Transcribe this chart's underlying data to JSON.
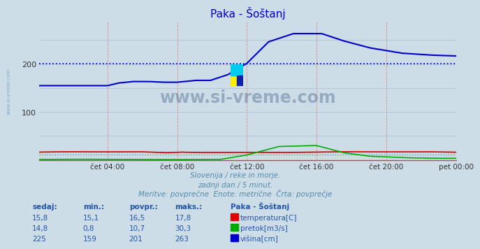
{
  "title": "Paka - Šoštanj",
  "title_color": "#0000cc",
  "fig_bg_color": "#ccdde8",
  "plot_bg_color": "#ccdde8",
  "ylim": [
    0,
    290
  ],
  "xlim": [
    0,
    287
  ],
  "yticks": [
    100,
    200
  ],
  "xtick_labels": [
    "čet 04:00",
    "čet 08:00",
    "čet 12:00",
    "čet 16:00",
    "čet 20:00",
    "pet 00:00"
  ],
  "xtick_positions": [
    47,
    95,
    143,
    191,
    239,
    287
  ],
  "temp_color": "#dd0000",
  "pretok_color": "#00aa00",
  "visina_color": "#0000cc",
  "visina_avg": 201,
  "temp_avg": 16.5,
  "pretok_avg": 10.7,
  "subtitle1": "Slovenija / reke in morje.",
  "subtitle2": "zadnji dan / 5 minut.",
  "subtitle3": "Meritve: povprečne  Enote: metrične  Črta: povprečje",
  "subtitle_color": "#5588aa",
  "table_header_color": "#2255aa",
  "table_value_color": "#2255aa",
  "table_headers": [
    "sedaj:",
    "min.:",
    "povpr.:",
    "maks.:"
  ],
  "table_col5_header": "Paka - Šoštanj",
  "table_rows": [
    {
      "values": [
        "15,8",
        "15,1",
        "16,5",
        "17,8"
      ],
      "label": "temperatura[C]",
      "color": "#dd0000"
    },
    {
      "values": [
        "14,8",
        "0,8",
        "10,7",
        "30,3"
      ],
      "label": "pretok[m3/s]",
      "color": "#00aa00"
    },
    {
      "values": [
        "225",
        "159",
        "201",
        "263"
      ],
      "label": "višina[cm]",
      "color": "#0000cc"
    }
  ],
  "watermark": "www.si-vreme.com",
  "watermark_color": "#1a3a6a",
  "side_text": "www.si-vreme.com",
  "side_text_color": "#7799bb"
}
